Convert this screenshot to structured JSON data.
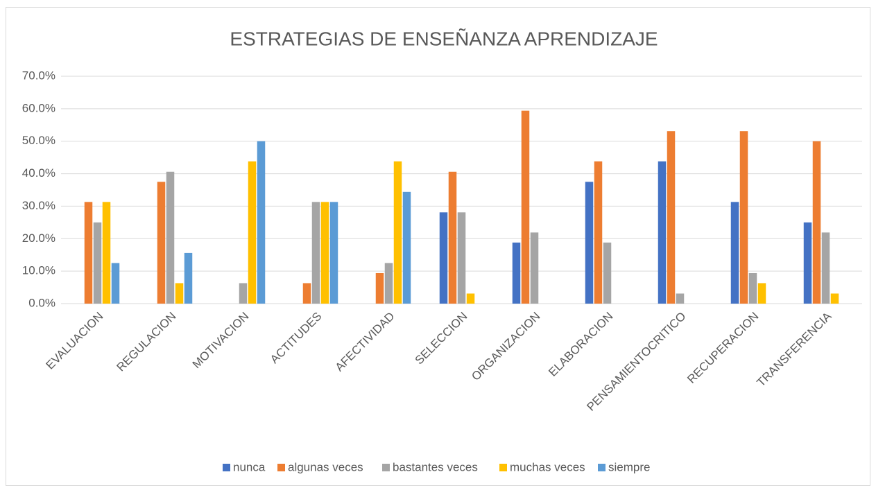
{
  "chart_data": {
    "type": "bar",
    "title": "ESTRATEGIAS DE ENSEÑANZA APRENDIZAJE",
    "categories": [
      "EVALUACION",
      "REGULACION",
      "MOTIVACION",
      "ACTITUDES",
      "AFECTIVIDAD",
      "SELECCION",
      "ORGANIZACION",
      "ELABORACION",
      "PENSAMIENTOCRITICO",
      "RECUPERACION",
      "TRANSFERENCIA"
    ],
    "series": [
      {
        "name": "nunca",
        "color": "#4472c4",
        "values": [
          0,
          0,
          0,
          0,
          0,
          28.1,
          18.8,
          37.5,
          43.8,
          31.3,
          25
        ]
      },
      {
        "name": "algunas veces",
        "color": "#ed7d31",
        "values": [
          31.3,
          37.5,
          0,
          6.3,
          9.4,
          40.6,
          59.4,
          43.8,
          53.1,
          53.1,
          50
        ]
      },
      {
        "name": "bastantes veces",
        "color": "#a5a5a5",
        "values": [
          25,
          40.6,
          6.3,
          31.3,
          12.5,
          28.1,
          21.9,
          18.8,
          3.1,
          9.4,
          21.9
        ]
      },
      {
        "name": "muchas veces",
        "color": "#ffc000",
        "values": [
          31.3,
          6.3,
          43.8,
          31.3,
          43.8,
          3.1,
          0,
          0,
          0,
          6.3,
          3.1
        ]
      },
      {
        "name": "siempre",
        "color": "#5b9bd5",
        "values": [
          12.5,
          15.6,
          50,
          31.3,
          34.4,
          0,
          0,
          0,
          0,
          0,
          0
        ]
      }
    ],
    "ylim": [
      0,
      70
    ],
    "yticks": [
      {
        "value": 0,
        "label": "0.0%"
      },
      {
        "value": 10,
        "label": "10.0%"
      },
      {
        "value": 20,
        "label": "20.0%"
      },
      {
        "value": 30,
        "label": "30.0%"
      },
      {
        "value": 40,
        "label": "40.0%"
      },
      {
        "value": 50,
        "label": "50.0%"
      },
      {
        "value": 60,
        "label": "60.0%"
      },
      {
        "value": 70,
        "label": "70.0%"
      }
    ],
    "grid": true,
    "legend": "bottom"
  }
}
